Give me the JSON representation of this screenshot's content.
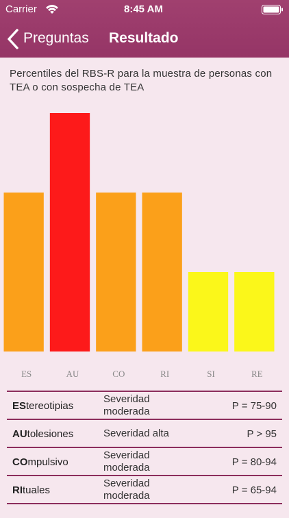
{
  "status": {
    "carrier": "Carrier",
    "time": "8:45 AM"
  },
  "nav": {
    "back": "Preguntas",
    "title": "Resultado"
  },
  "chart_data": {
    "type": "bar",
    "title": "Percentiles del RBS-R para la muestra de personas con TEA o con sospecha de TEA",
    "categories": [
      "ES",
      "AU",
      "CO",
      "RI",
      "SI",
      "RE"
    ],
    "values": [
      2,
      3,
      2,
      2,
      1,
      1
    ],
    "colors": [
      "#fba01a",
      "#fd1a1a",
      "#fba01a",
      "#fba01a",
      "#fbf71a",
      "#fbf71a"
    ],
    "ylim": [
      0,
      3
    ]
  },
  "table": {
    "rows": [
      [
        "ES",
        "tereotipias",
        "Severidad moderada",
        "P = 75-90"
      ],
      [
        "AU",
        "tolesiones",
        "Severidad alta",
        "P > 95"
      ],
      [
        "CO",
        "mpulsivo",
        "Severidad moderada",
        "P = 80-94"
      ],
      [
        "RI",
        "tuales",
        "Severidad moderada",
        "P = 65-94"
      ]
    ]
  }
}
